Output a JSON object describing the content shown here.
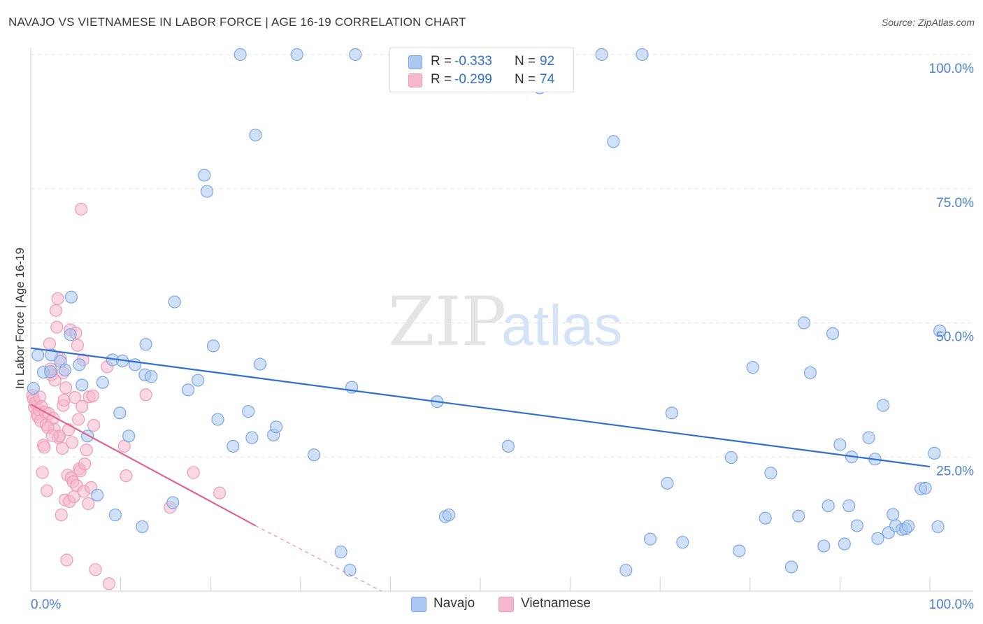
{
  "title": "NAVAJO VS VIETNAMESE IN LABOR FORCE | AGE 16-19 CORRELATION CHART",
  "source": "Source: ZipAtlas.com",
  "watermark": {
    "zip": "ZIP",
    "atlas": "atlas"
  },
  "legend": {
    "navajo": {
      "r_label": "R =",
      "r_value": "-0.333",
      "n_label": "N =",
      "n_value": "92"
    },
    "vietnamese": {
      "r_label": "R =",
      "r_value": "-0.299",
      "n_label": "N =",
      "n_value": "74"
    }
  },
  "colors": {
    "navajo_fill": "#a9c7f0",
    "navajo_stroke": "#7aa8e6",
    "navajo_line": "#2f6fd1",
    "vietnamese_fill": "#f6b8cc",
    "vietnamese_stroke": "#ef9bb6",
    "vietnamese_line": "#e0648f",
    "tick_label": "#4a7fd0",
    "grid": "#e3e3e3"
  },
  "chart_data": {
    "type": "scatter",
    "title": "NAVAJO VS VIETNAMESE IN LABOR FORCE | AGE 16-19 CORRELATION CHART",
    "ylabel": "In Labor Force | Age 16-19",
    "xlabel": "",
    "xlim": [
      0,
      100
    ],
    "ylim": [
      0,
      100
    ],
    "x_tick_labels": [
      "0.0%",
      "100.0%"
    ],
    "y_ticks": [
      25,
      50,
      75,
      100
    ],
    "y_tick_labels": [
      "25.0%",
      "50.0%",
      "75.0%",
      "100.0%"
    ],
    "series": [
      {
        "name": "Navajo",
        "R": -0.333,
        "N": 92,
        "trend": {
          "x": [
            0,
            100
          ],
          "y": [
            45.3,
            23.2
          ]
        },
        "points": [
          [
            0.3,
            37.8
          ],
          [
            0.8,
            44
          ],
          [
            1.4,
            40.8
          ],
          [
            2.2,
            40.9
          ],
          [
            2.3,
            44
          ],
          [
            3.3,
            42.8
          ],
          [
            3.8,
            41.2
          ],
          [
            4.5,
            54.8
          ],
          [
            4.4,
            47.8
          ],
          [
            5.4,
            42.2
          ],
          [
            5.7,
            38.4
          ],
          [
            6.3,
            28.9
          ],
          [
            7.4,
            17.9
          ],
          [
            8.0,
            38.9
          ],
          [
            9.1,
            43.1
          ],
          [
            9.4,
            14.2
          ],
          [
            9.9,
            33.2
          ],
          [
            10.2,
            42.9
          ],
          [
            10.9,
            28.9
          ],
          [
            11.6,
            42.2
          ],
          [
            12.4,
            12.0
          ],
          [
            12.7,
            40.3
          ],
          [
            12.8,
            46
          ],
          [
            13.4,
            40
          ],
          [
            15.8,
            16.5
          ],
          [
            16.0,
            53.9
          ],
          [
            17.5,
            37.5
          ],
          [
            18.6,
            39.3
          ],
          [
            19.3,
            77.5
          ],
          [
            19.6,
            74.5
          ],
          [
            20.3,
            45.7
          ],
          [
            20.8,
            32
          ],
          [
            22.5,
            27
          ],
          [
            23.3,
            100
          ],
          [
            24.6,
            28.6
          ],
          [
            24.2,
            33.5
          ],
          [
            25.0,
            85
          ],
          [
            25.5,
            42.3
          ],
          [
            27.0,
            29.1
          ],
          [
            27.3,
            30.6
          ],
          [
            29.6,
            100
          ],
          [
            31.5,
            25.4
          ],
          [
            34.5,
            7.3
          ],
          [
            35.5,
            3.9
          ],
          [
            35.7,
            38
          ],
          [
            36.1,
            100
          ],
          [
            45.2,
            35.3
          ],
          [
            46.1,
            13.9
          ],
          [
            46.5,
            14.2
          ],
          [
            53.1,
            27
          ],
          [
            56.6,
            93.8
          ],
          [
            63.5,
            100
          ],
          [
            64.8,
            83.8
          ],
          [
            66.2,
            3.9
          ],
          [
            68.0,
            100
          ],
          [
            68.9,
            9.7
          ],
          [
            70.8,
            20.1
          ],
          [
            71.3,
            33.2
          ],
          [
            72.5,
            9.1
          ],
          [
            77.9,
            24.9
          ],
          [
            78.8,
            7.5
          ],
          [
            80.3,
            41.7
          ],
          [
            81.7,
            13.6
          ],
          [
            82.3,
            22
          ],
          [
            84.6,
            4.5
          ],
          [
            85.4,
            14
          ],
          [
            86.0,
            50
          ],
          [
            86.7,
            40.7
          ],
          [
            88.2,
            8.4
          ],
          [
            88.7,
            15.9
          ],
          [
            89.2,
            48
          ],
          [
            90.0,
            27.3
          ],
          [
            90.5,
            8.8
          ],
          [
            91.0,
            15.9
          ],
          [
            91.3,
            25
          ],
          [
            91.9,
            12.2
          ],
          [
            93.2,
            28.6
          ],
          [
            93.9,
            24.6
          ],
          [
            94.2,
            9.8
          ],
          [
            94.8,
            34.6
          ],
          [
            95.4,
            10.9
          ],
          [
            95.9,
            14.3
          ],
          [
            96.2,
            12.2
          ],
          [
            96.9,
            11.5
          ],
          [
            97.3,
            11.6
          ],
          [
            97.6,
            12.1
          ],
          [
            99.0,
            19.1
          ],
          [
            99.5,
            19.2
          ],
          [
            100.5,
            25.7
          ],
          [
            100.9,
            12
          ],
          [
            101.1,
            48.5
          ]
        ]
      },
      {
        "name": "Vietnamese",
        "R": -0.299,
        "N": 74,
        "trend": {
          "x": [
            0,
            25
          ],
          "y": [
            34.8,
            12.2
          ]
        },
        "trend_dashed": {
          "x": [
            25,
            39
          ],
          "y": [
            12.2,
            0
          ]
        },
        "points": [
          [
            0.2,
            36.5
          ],
          [
            0.3,
            35.8
          ],
          [
            0.4,
            34.3
          ],
          [
            0.5,
            35.1
          ],
          [
            0.7,
            33
          ],
          [
            0.8,
            32.5
          ],
          [
            0.9,
            33.8
          ],
          [
            1.0,
            36.2
          ],
          [
            1.1,
            31.7
          ],
          [
            1.2,
            34.4
          ],
          [
            1.3,
            22.1
          ],
          [
            1.4,
            27.2
          ],
          [
            1.5,
            26.8
          ],
          [
            1.6,
            33.4
          ],
          [
            1.7,
            31
          ],
          [
            1.8,
            18.7
          ],
          [
            2.0,
            33.1
          ],
          [
            2.1,
            46.1
          ],
          [
            2.2,
            41.4
          ],
          [
            2.3,
            40.3
          ],
          [
            2.5,
            32.2
          ],
          [
            2.6,
            30.2
          ],
          [
            2.7,
            39.3
          ],
          [
            2.8,
            52.3
          ],
          [
            2.9,
            49.2
          ],
          [
            3.0,
            54.5
          ],
          [
            3.1,
            28.6
          ],
          [
            3.2,
            28.9
          ],
          [
            3.3,
            43.3
          ],
          [
            3.4,
            14.2
          ],
          [
            3.5,
            26.6
          ],
          [
            3.6,
            34.6
          ],
          [
            3.7,
            35.6
          ],
          [
            3.8,
            17
          ],
          [
            3.9,
            37.9
          ],
          [
            4.0,
            5.8
          ],
          [
            4.1,
            21.6
          ],
          [
            4.2,
            30.1
          ],
          [
            4.3,
            16.7
          ],
          [
            4.4,
            48.7
          ],
          [
            4.5,
            21.1
          ],
          [
            4.6,
            27.7
          ],
          [
            4.7,
            20.4
          ],
          [
            4.8,
            17.6
          ],
          [
            5.0,
            48.1
          ],
          [
            5.1,
            19.7
          ],
          [
            5.2,
            45.8
          ],
          [
            5.3,
            32
          ],
          [
            5.4,
            22.8
          ],
          [
            5.5,
            22.4
          ],
          [
            5.6,
            71.2
          ],
          [
            5.7,
            34.4
          ],
          [
            5.8,
            43.1
          ],
          [
            5.9,
            18.6
          ],
          [
            6.0,
            23.7
          ],
          [
            6.2,
            26.3
          ],
          [
            6.4,
            16.3
          ],
          [
            6.5,
            36.2
          ],
          [
            6.7,
            19.3
          ],
          [
            6.9,
            36.4
          ],
          [
            7.0,
            30.9
          ],
          [
            7.2,
            4
          ],
          [
            8.5,
            41.8
          ],
          [
            8.7,
            1.4
          ],
          [
            10.4,
            27
          ],
          [
            10.6,
            21.5
          ],
          [
            12.8,
            36.6
          ],
          [
            15.5,
            15.6
          ],
          [
            18.1,
            22.1
          ],
          [
            21.0,
            18.3
          ],
          [
            1.9,
            30.5
          ],
          [
            2.4,
            29
          ],
          [
            3.6,
            40.7
          ],
          [
            4.9,
            36.1
          ]
        ]
      }
    ]
  }
}
